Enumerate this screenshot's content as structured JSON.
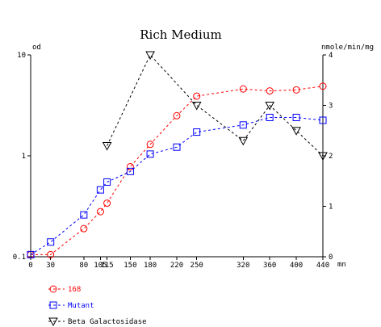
{
  "chart_data": {
    "type": "line",
    "title": "Rich Medium",
    "y_left_label": "od",
    "y_right_label": "nmole/min/mg",
    "x_unit_label": "mn",
    "x_tick_labels": [
      "0",
      "30",
      "80",
      "105",
      "115",
      "150",
      "180",
      "220",
      "250",
      "320",
      "360",
      "400",
      "440"
    ],
    "x_tick_values": [
      0,
      30,
      80,
      105,
      115,
      150,
      180,
      220,
      250,
      320,
      360,
      400,
      440
    ],
    "xlim": [
      0,
      440
    ],
    "y_left_scale": "log",
    "y_left_ticks": [
      "0.1",
      "1",
      "10"
    ],
    "y_left_lim": [
      0.1,
      10
    ],
    "y_right_ticks": [
      "0",
      "1",
      "2",
      "3",
      "4"
    ],
    "y_right_lim": [
      0,
      4
    ],
    "series": [
      {
        "name": "168",
        "axis": "left",
        "marker": "circle",
        "color": "#ff0000",
        "x": [
          0,
          30,
          80,
          105,
          115,
          150,
          180,
          220,
          250,
          320,
          360,
          400,
          440
        ],
        "y": [
          0.105,
          0.105,
          0.19,
          0.28,
          0.34,
          0.78,
          1.3,
          2.5,
          3.9,
          4.6,
          4.4,
          4.5,
          4.9
        ]
      },
      {
        "name": "Mutant",
        "axis": "left",
        "marker": "square",
        "color": "#0000ff",
        "x": [
          0,
          30,
          80,
          105,
          115,
          150,
          180,
          220,
          250,
          320,
          360,
          400,
          440
        ],
        "y": [
          0.105,
          0.14,
          0.26,
          0.46,
          0.55,
          0.7,
          1.04,
          1.22,
          1.72,
          2.02,
          2.4,
          2.4,
          2.25
        ]
      },
      {
        "name": "Beta Galactosidase",
        "axis": "right",
        "marker": "triangle-down",
        "color": "#000000",
        "x": [
          115,
          180,
          250,
          320,
          360,
          400,
          440
        ],
        "y": [
          2.2,
          4.0,
          3.0,
          2.3,
          3.0,
          2.5,
          2.0
        ]
      }
    ]
  }
}
